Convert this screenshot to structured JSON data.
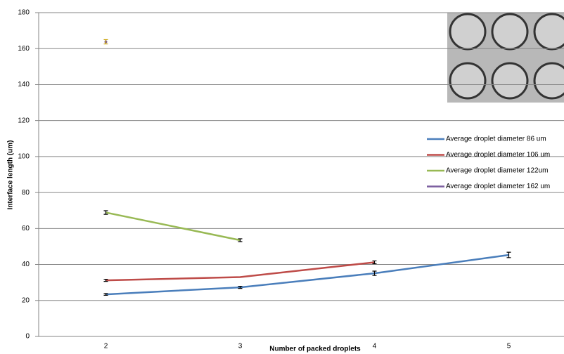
{
  "chart_data": {
    "type": "line",
    "xlabel": "Number of packed droplets",
    "ylabel": "Interface length (um)",
    "categories": [
      "2",
      "3",
      "4",
      "5"
    ],
    "ylim": [
      0,
      180
    ],
    "yticks": [
      0,
      20,
      40,
      60,
      80,
      100,
      120,
      140,
      160,
      180
    ],
    "grid": true,
    "legend": "right",
    "series": [
      {
        "name": "Average droplet diameter 86 um",
        "color": "#4a7ebb",
        "values": [
          23.4,
          27.3,
          35.1,
          45.3
        ],
        "errors": [
          0.5,
          0.6,
          1.2,
          1.5
        ]
      },
      {
        "name": "Average droplet diameter 106 um",
        "color": "#be4b48",
        "values": [
          31.2,
          33,
          41.2,
          null
        ],
        "errors": [
          0.6,
          null,
          0.8,
          null
        ]
      },
      {
        "name": "Average droplet diameter 122um",
        "color": "#98b954",
        "values": [
          68.9,
          53.5,
          null,
          null
        ],
        "errors": [
          1.0,
          0.8,
          null,
          null
        ]
      },
      {
        "name": "Average droplet diameter 162 um",
        "color": "#7d60a0",
        "values": [
          163.8,
          null,
          null,
          null
        ],
        "errors": [
          1.2,
          null,
          null,
          null
        ]
      }
    ]
  }
}
